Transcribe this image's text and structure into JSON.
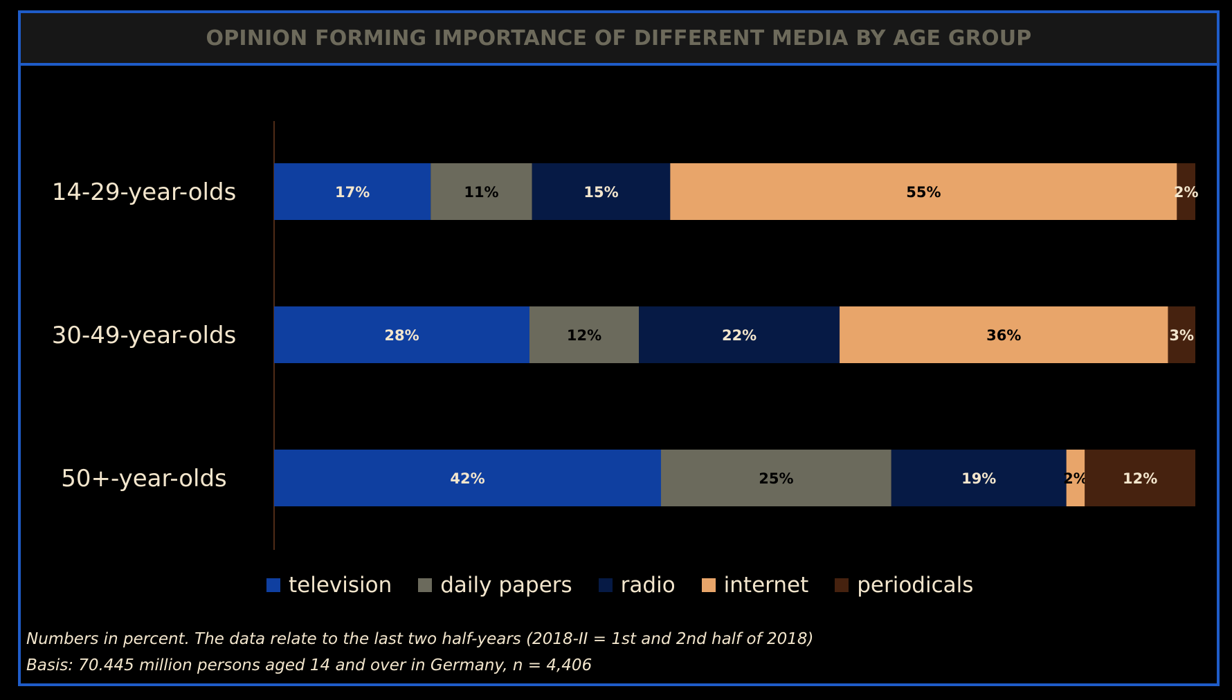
{
  "title": "OPINION FORMING IMPORTANCE OF DIFFERENT MEDIA BY AGE GROUP",
  "colors": {
    "frame": "#1f5cc8",
    "title_text": "#6d6a5b",
    "text": "#f3e6cd",
    "axis": "#6b3a1f"
  },
  "chart_data": {
    "type": "bar",
    "orientation": "horizontal",
    "stacked": true,
    "title": "OPINION FORMING IMPORTANCE OF DIFFERENT MEDIA BY AGE GROUP",
    "xlabel": "",
    "ylabel": "",
    "xlim": [
      0,
      100
    ],
    "grid": false,
    "legend_position": "bottom",
    "categories": [
      "14-29-year-olds",
      "30-49-year-olds",
      "50+-year-olds"
    ],
    "series": [
      {
        "name": "television",
        "color": "#0f3fa0",
        "label_color": "#f3e6cd",
        "values": [
          17,
          28,
          42
        ],
        "labels": [
          "17%",
          "28%",
          "42%"
        ]
      },
      {
        "name": "daily papers",
        "color": "#6b6a5c",
        "label_color": "#000000",
        "values": [
          11,
          12,
          25
        ],
        "labels": [
          "11%",
          "12%",
          "25%"
        ]
      },
      {
        "name": "radio",
        "color": "#061a45",
        "label_color": "#f3e6cd",
        "values": [
          15,
          22,
          19
        ],
        "labels": [
          "15%",
          "22%",
          "19%"
        ]
      },
      {
        "name": "internet",
        "color": "#e8a56a",
        "label_color": "#000000",
        "values": [
          55,
          36,
          2
        ],
        "labels": [
          "55%",
          "36%",
          "2%"
        ]
      },
      {
        "name": "periodicals",
        "color": "#46220f",
        "label_color": "#f3e6cd",
        "values": [
          2,
          3,
          12
        ],
        "labels": [
          "2%",
          "3%",
          "12%"
        ]
      }
    ]
  },
  "notes": {
    "line1": "Numbers in percent. The data relate to the last two half-years (2018-II = 1st and 2nd half of 2018)",
    "line2": "Basis: 70.445 million persons aged 14 and over in Germany, n = 4,406"
  }
}
